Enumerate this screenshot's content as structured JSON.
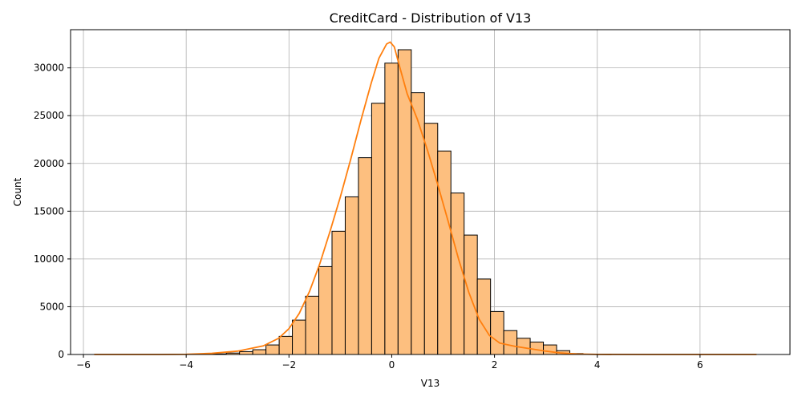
{
  "chart_data": {
    "type": "histogram",
    "title": "CreditCard - Distribution of V13",
    "xlabel": "V13",
    "ylabel": "Count",
    "xlim": [
      -6.25,
      7.75
    ],
    "ylim": [
      0,
      34000
    ],
    "xticks": [
      -6,
      -4,
      -2,
      0,
      2,
      4,
      6
    ],
    "yticks": [
      0,
      5000,
      10000,
      15000,
      20000,
      25000,
      30000
    ],
    "grid": true,
    "bar_color": "#fdbf7f",
    "edge_color": "#000000",
    "kde_color": "#ff7f0e",
    "bin_start": -5.79,
    "bin_width": 0.2571,
    "counts": [
      0,
      0,
      0,
      0,
      0,
      0,
      0,
      0,
      30,
      60,
      150,
      300,
      500,
      1000,
      1900,
      3600,
      6100,
      9200,
      12900,
      16500,
      20600,
      26300,
      30500,
      31900,
      27400,
      24200,
      21300,
      16900,
      12500,
      7900,
      4500,
      2500,
      1700,
      1300,
      1000,
      400,
      100,
      20,
      0,
      0,
      0,
      0,
      0,
      0,
      0,
      0,
      0,
      0,
      0,
      0
    ],
    "kde": [
      [
        -5.79,
        0
      ],
      [
        -4.5,
        0
      ],
      [
        -4.0,
        20
      ],
      [
        -3.5,
        120
      ],
      [
        -3.0,
        350
      ],
      [
        -2.5,
        900
      ],
      [
        -2.2,
        1700
      ],
      [
        -2.0,
        2700
      ],
      [
        -1.8,
        4300
      ],
      [
        -1.6,
        6600
      ],
      [
        -1.4,
        9500
      ],
      [
        -1.2,
        12900
      ],
      [
        -1.0,
        16500
      ],
      [
        -0.8,
        20400
      ],
      [
        -0.6,
        24500
      ],
      [
        -0.4,
        28400
      ],
      [
        -0.25,
        31000
      ],
      [
        -0.1,
        32500
      ],
      [
        -0.03,
        32700
      ],
      [
        0.05,
        32200
      ],
      [
        0.15,
        30200
      ],
      [
        0.3,
        27300
      ],
      [
        0.5,
        24600
      ],
      [
        0.7,
        21300
      ],
      [
        0.9,
        17700
      ],
      [
        1.1,
        13900
      ],
      [
        1.3,
        10000
      ],
      [
        1.5,
        6500
      ],
      [
        1.7,
        3700
      ],
      [
        1.9,
        2000
      ],
      [
        2.1,
        1200
      ],
      [
        2.4,
        850
      ],
      [
        2.7,
        600
      ],
      [
        3.0,
        350
      ],
      [
        3.3,
        150
      ],
      [
        3.6,
        50
      ],
      [
        4.0,
        10
      ],
      [
        5.0,
        0
      ],
      [
        7.1,
        0
      ]
    ]
  }
}
